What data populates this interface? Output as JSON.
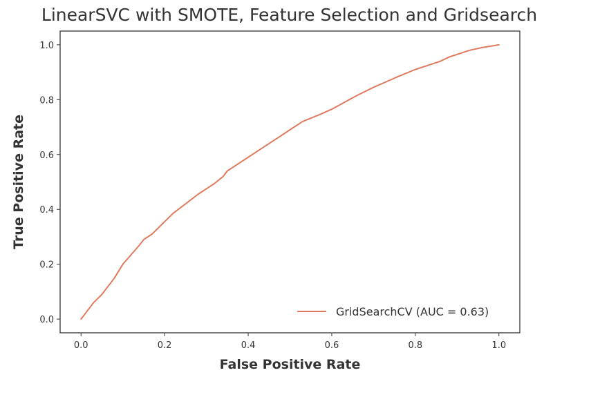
{
  "chart_data": {
    "type": "line",
    "title": "LinearSVC with SMOTE, Feature Selection and Gridsearch",
    "xlabel": "False Positive Rate",
    "ylabel": "True Positive Rate",
    "xlim": [
      -0.05,
      1.05
    ],
    "ylim": [
      -0.05,
      1.05
    ],
    "xticks": [
      "0.0",
      "0.2",
      "0.4",
      "0.6",
      "0.8",
      "1.0"
    ],
    "yticks": [
      "0.0",
      "0.2",
      "0.4",
      "0.6",
      "0.8",
      "1.0"
    ],
    "grid": false,
    "legend_position": "lower-right",
    "series": [
      {
        "name": "GridSearchCV (AUC = 0.63)",
        "color": "#e07a5f",
        "x": [
          0.0,
          0.01,
          0.02,
          0.03,
          0.04,
          0.05,
          0.06,
          0.08,
          0.1,
          0.12,
          0.14,
          0.15,
          0.17,
          0.2,
          0.22,
          0.25,
          0.28,
          0.3,
          0.32,
          0.34,
          0.35,
          0.38,
          0.4,
          0.43,
          0.46,
          0.5,
          0.53,
          0.57,
          0.6,
          0.63,
          0.66,
          0.7,
          0.73,
          0.76,
          0.8,
          0.83,
          0.86,
          0.88,
          0.9,
          0.93,
          0.96,
          0.98,
          1.0
        ],
        "y": [
          0.0,
          0.02,
          0.04,
          0.06,
          0.075,
          0.09,
          0.11,
          0.15,
          0.2,
          0.235,
          0.27,
          0.29,
          0.31,
          0.355,
          0.385,
          0.42,
          0.455,
          0.475,
          0.495,
          0.52,
          0.54,
          0.57,
          0.59,
          0.62,
          0.65,
          0.69,
          0.72,
          0.745,
          0.765,
          0.79,
          0.815,
          0.845,
          0.865,
          0.885,
          0.91,
          0.925,
          0.94,
          0.955,
          0.965,
          0.98,
          0.99,
          0.995,
          1.0
        ]
      }
    ]
  }
}
